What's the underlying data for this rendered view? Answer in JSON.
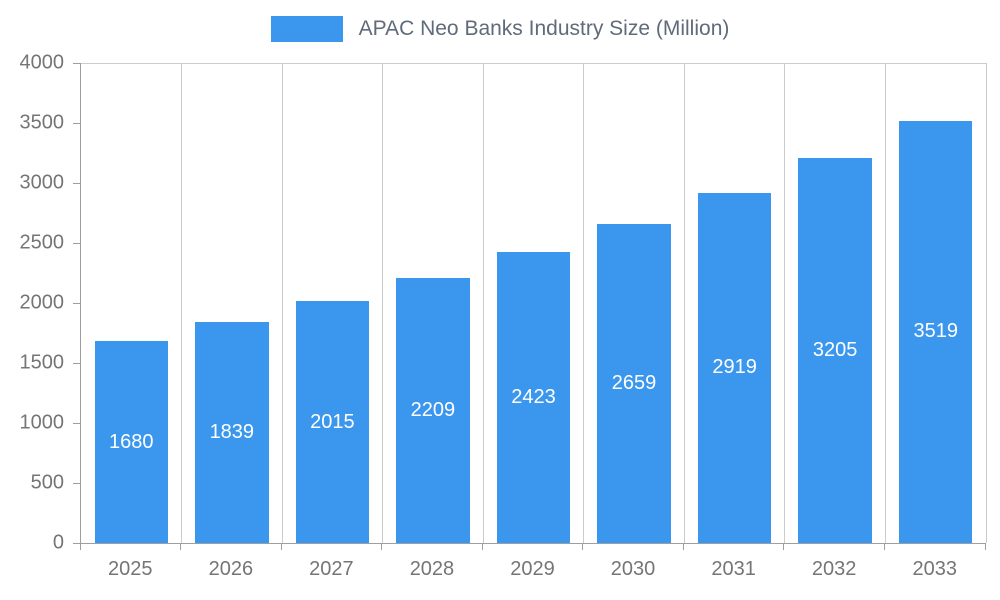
{
  "chart": {
    "legend_label": "APAC Neo Banks Industry Size (Million)",
    "colors": {
      "bar": "#3b97ee",
      "grid": "#cccccc",
      "axis": "#9e9e9e",
      "tick_label": "#757575",
      "value_label": "#ffffff",
      "legend_text": "#5f6b7a"
    }
  },
  "chart_data": {
    "type": "bar",
    "title": "APAC Neo Banks Industry Size (Million)",
    "categories": [
      "2025",
      "2026",
      "2027",
      "2028",
      "2029",
      "2030",
      "2031",
      "2032",
      "2033"
    ],
    "values": [
      1680,
      1839,
      2015,
      2209,
      2423,
      2659,
      2919,
      3205,
      3519
    ],
    "xlabel": "",
    "ylabel": "",
    "ylim": [
      0,
      4000
    ],
    "ytick_interval": 500,
    "yticks": [
      0,
      500,
      1000,
      1500,
      2000,
      2500,
      3000,
      3500,
      4000
    ],
    "grid": true,
    "legend_position": "top",
    "value_labels": "inside-center"
  }
}
